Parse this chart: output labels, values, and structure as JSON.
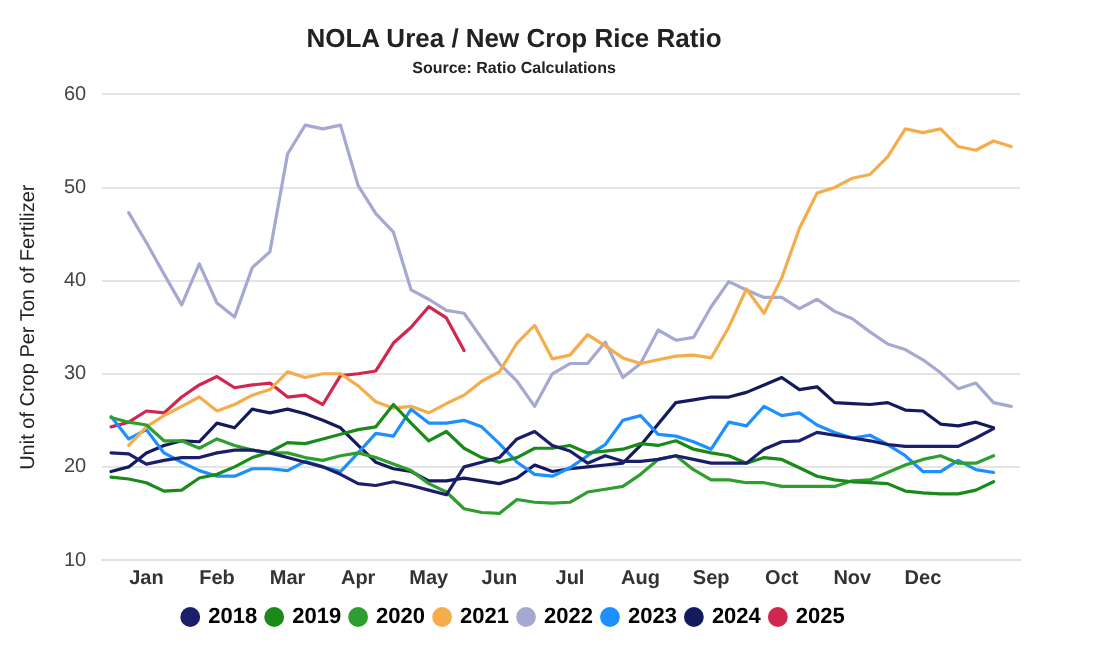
{
  "chart_data": {
    "type": "line",
    "title": "NOLA Urea / New Crop Rice Ratio",
    "subtitle": "Source: Ratio Calculations",
    "ylabel": "Unit of Crop Per Ton of Fertilizer",
    "categories": [
      null,
      null,
      "Jan",
      null,
      null,
      null,
      "Feb",
      null,
      null,
      null,
      "Mar",
      null,
      null,
      null,
      "Apr",
      null,
      null,
      null,
      "May",
      null,
      null,
      null,
      "Jun",
      null,
      null,
      null,
      "Jul",
      null,
      null,
      null,
      "Aug",
      null,
      null,
      null,
      "Sep",
      null,
      null,
      null,
      "Oct",
      null,
      null,
      null,
      "Nov",
      null,
      null,
      null,
      "Dec",
      null,
      null,
      null,
      null,
      null
    ],
    "ylim": [
      10,
      60
    ],
    "yticks": [
      10,
      20,
      30,
      40,
      50,
      60
    ],
    "grid": "y",
    "legend": "bottom",
    "marker": "none",
    "line_style": "solid",
    "series": [
      {
        "name": "2018",
        "color": "#1b1f6b",
        "values": [
          21.5,
          21.4,
          20.3,
          20.7,
          21,
          21,
          21.5,
          21.8,
          21.8,
          21.5,
          21,
          20.5,
          20,
          19.2,
          18.2,
          18,
          18.4,
          18,
          17.5,
          17,
          20,
          20.5,
          21,
          23,
          23.8,
          22.3,
          21.7,
          20.4,
          21.2,
          20.6,
          20.6,
          20.8,
          21.2,
          20.8,
          20.4,
          20.4,
          20.4,
          21.9,
          22.7,
          22.8,
          23.7,
          23.4,
          23.1,
          22.8,
          22.4,
          22.2,
          22.2,
          22.2,
          22.2,
          23.1,
          24.1,
          null
        ]
      },
      {
        "name": "2019",
        "color": "#1a8a1a",
        "values": [
          18.9,
          18.7,
          18.3,
          17.4,
          17.5,
          18.8,
          19.2,
          20,
          21,
          21.6,
          22.6,
          22.5,
          23,
          23.5,
          24,
          24.3,
          26.7,
          24.7,
          22.8,
          23.8,
          22,
          21,
          20.5,
          21,
          22,
          22,
          22.3,
          21.5,
          21.7,
          21.9,
          22.5,
          22.3,
          22.8,
          21.9,
          21.5,
          21.2,
          20.4,
          21,
          20.8,
          19.9,
          19,
          18.6,
          18.4,
          18.3,
          18.2,
          17.4,
          17.2,
          17.1,
          17.1,
          17.5,
          18.4,
          null
        ]
      },
      {
        "name": "2020",
        "color": "#2e9e2e",
        "values": [
          25.3,
          24.8,
          24.5,
          22.8,
          22.8,
          22,
          23,
          22.3,
          21.8,
          21.5,
          21.5,
          21,
          20.7,
          21.2,
          21.5,
          21,
          20.3,
          19.6,
          18.2,
          17.3,
          15.5,
          15.1,
          15,
          16.5,
          16.2,
          16.1,
          16.2,
          17.3,
          17.6,
          17.9,
          19.2,
          20.8,
          21.2,
          19.7,
          18.6,
          18.6,
          18.3,
          18.3,
          17.9,
          17.9,
          17.9,
          17.9,
          18.5,
          18.6,
          19.4,
          20.2,
          20.8,
          21.2,
          20.4,
          20.4,
          21.2,
          null
        ]
      },
      {
        "name": "2021",
        "color": "#f5ad4b",
        "values": [
          null,
          22.3,
          24.3,
          25.5,
          26.5,
          27.5,
          26,
          26.7,
          27.7,
          28.3,
          30.2,
          29.6,
          30,
          30,
          28.7,
          27,
          26.3,
          26.5,
          25.8,
          26.8,
          27.7,
          29.2,
          30.2,
          33.3,
          35.2,
          31.6,
          32,
          34.2,
          33,
          31.7,
          31.1,
          31.5,
          31.9,
          32,
          31.7,
          35,
          39.1,
          36.5,
          40.3,
          45.6,
          49.4,
          50,
          51,
          51.4,
          53.3,
          56.3,
          55.9,
          56.3,
          54.4,
          54,
          55,
          54.4
        ]
      },
      {
        "name": "2022",
        "color": "#a5a8d0",
        "values": [
          null,
          47.3,
          44.1,
          40.7,
          37.4,
          41.8,
          37.6,
          36.1,
          41.4,
          43.1,
          53.6,
          56.7,
          56.3,
          56.7,
          50.2,
          47.2,
          45.2,
          39,
          38,
          36.8,
          36.5,
          33.8,
          31.1,
          29.2,
          26.5,
          30,
          31.1,
          31.1,
          33.4,
          29.6,
          31.1,
          34.7,
          33.6,
          33.9,
          37.2,
          39.9,
          39,
          38.2,
          38.2,
          37,
          38,
          36.7,
          35.9,
          34.5,
          33.2,
          32.6,
          31.5,
          30.1,
          28.4,
          29,
          26.9,
          26.5
        ]
      },
      {
        "name": "2023",
        "color": "#1e8fff",
        "values": [
          25.4,
          23,
          24,
          21.5,
          20.5,
          19.6,
          19,
          19,
          19.8,
          19.8,
          19.6,
          20.6,
          20,
          19.5,
          21.5,
          23.6,
          23.3,
          26.2,
          24.7,
          24.7,
          25,
          24.3,
          22.5,
          20.5,
          19.2,
          19,
          19.9,
          21.2,
          22.4,
          25,
          25.5,
          23.5,
          23.3,
          22.7,
          21.9,
          24.8,
          24.4,
          26.5,
          25.5,
          25.8,
          24.5,
          23.7,
          23.1,
          23.4,
          22.4,
          21.2,
          19.5,
          19.5,
          20.7,
          19.7,
          19.4,
          null
        ]
      },
      {
        "name": "2024",
        "color": "#141a5e",
        "values": [
          19.5,
          20,
          21.5,
          22.3,
          22.8,
          22.7,
          24.7,
          24.2,
          26.2,
          25.8,
          26.2,
          25.7,
          25,
          24.2,
          22.3,
          20.5,
          19.8,
          19.5,
          18.5,
          18.5,
          18.8,
          18.5,
          18.2,
          18.8,
          20.2,
          19.5,
          19.8,
          20,
          20.2,
          20.4,
          22.3,
          24.6,
          26.9,
          27.2,
          27.5,
          27.5,
          28,
          28.8,
          29.6,
          28.3,
          28.6,
          26.9,
          26.8,
          26.7,
          26.9,
          26.1,
          26,
          24.6,
          24.4,
          24.8,
          24.2,
          null
        ]
      },
      {
        "name": "2025",
        "color": "#d0274f",
        "values": [
          24.3,
          24.8,
          26,
          25.8,
          27.5,
          28.8,
          29.7,
          28.5,
          28.8,
          29,
          27.5,
          27.7,
          26.7,
          29.8,
          30,
          30.3,
          33.3,
          35,
          37.2,
          36,
          32.5,
          null,
          null,
          null,
          null,
          null,
          null,
          null,
          null,
          null,
          null,
          null,
          null,
          null,
          null,
          null,
          null,
          null,
          null,
          null,
          null,
          null,
          null,
          null,
          null,
          null,
          null,
          null,
          null,
          null,
          null,
          null
        ]
      }
    ]
  }
}
